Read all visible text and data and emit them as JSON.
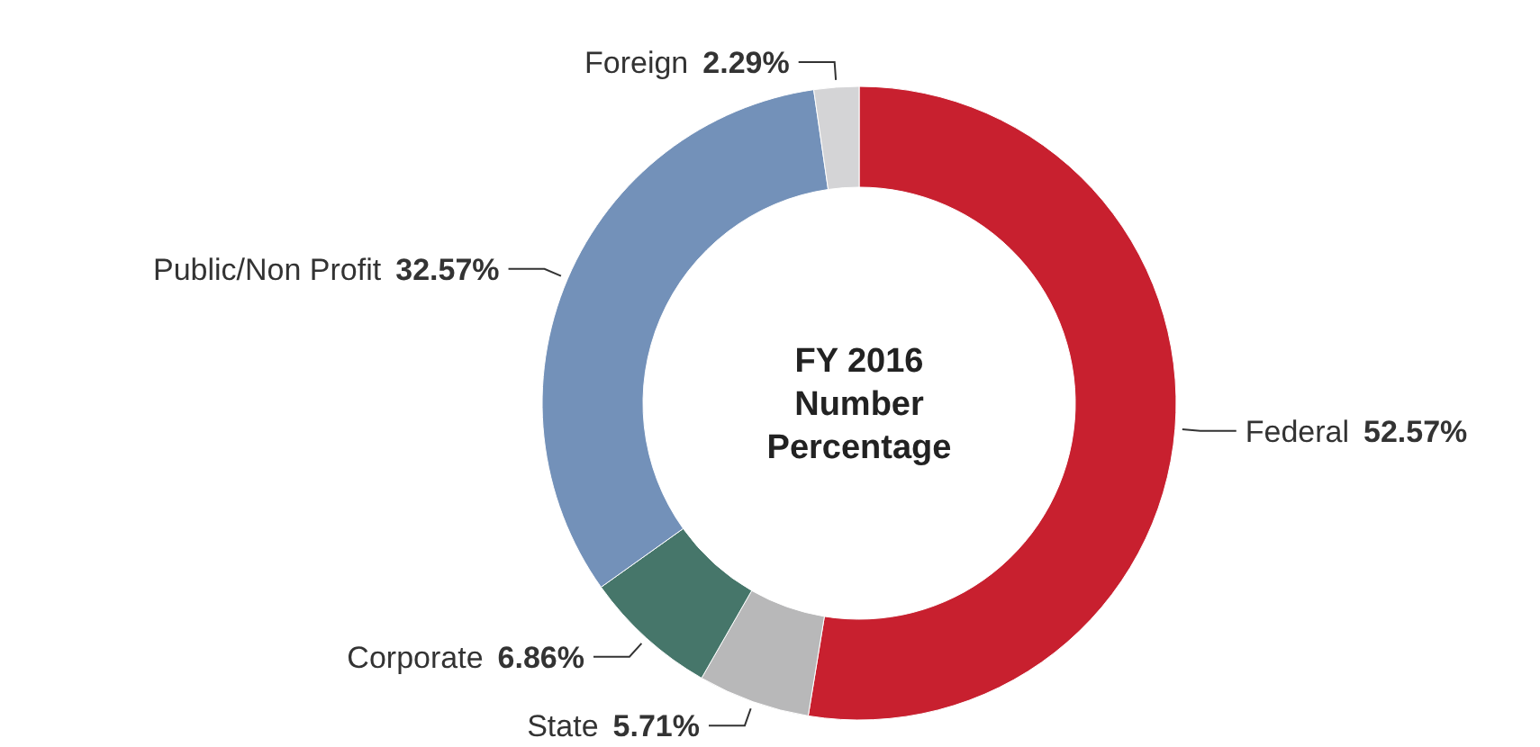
{
  "chart_data": {
    "type": "donut",
    "title": "FY 2016 Number Percentage",
    "categories": [
      "Federal",
      "State",
      "Corporate",
      "Public/Non Profit",
      "Foreign"
    ],
    "values": [
      52.57,
      5.71,
      6.86,
      32.57,
      2.29
    ],
    "colors": [
      "#c8202f",
      "#b8b8b9",
      "#46766a",
      "#7391b9",
      "#d4d4d6"
    ],
    "value_labels": [
      "52.57%",
      "5.71%",
      "6.86%",
      "32.57%",
      "2.29%"
    ]
  }
}
